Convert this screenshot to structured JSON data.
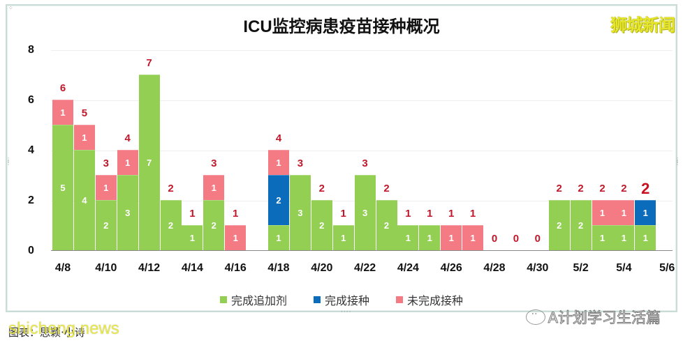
{
  "header": {
    "title": "ICU监控病患疫苗接种概况",
    "brand": "狮城新闻"
  },
  "legend": [
    {
      "label": "完成追加剂",
      "color": "#92cf52"
    },
    {
      "label": "完成接种",
      "color": "#0b6cbc"
    },
    {
      "label": "未完成接种",
      "color": "#f47a84"
    }
  ],
  "footer": {
    "source": "图表：思颖·小诗",
    "watermark": "shicheng.news",
    "wechat": "A计划学习生活篇"
  },
  "colors": {
    "booster": "#92cf52",
    "fully_vaccinated": "#0b6cbc",
    "unvaccinated": "#f47a84",
    "total_label": "#c0182a"
  },
  "chart_data": {
    "type": "bar",
    "stacked": true,
    "title": "ICU监控病患疫苗接种概况",
    "xlabel": "",
    "ylabel": "",
    "ylim": [
      0,
      8
    ],
    "yticks": [
      0,
      2,
      4,
      6,
      8
    ],
    "grid": true,
    "legend_position": "bottom",
    "xtick_labels": [
      "4/8",
      "4/10",
      "4/12",
      "4/14",
      "4/16",
      "4/18",
      "4/20",
      "4/22",
      "4/24",
      "4/26",
      "4/28",
      "4/30",
      "5/2",
      "5/4",
      "5/6"
    ],
    "categories": [
      "4/8",
      "4/9",
      "4/10",
      "4/11",
      "4/12",
      "4/13",
      "4/14",
      "4/15",
      "4/16",
      "4/17",
      "4/18",
      "4/19",
      "4/20",
      "4/21",
      "4/22",
      "4/23",
      "4/24",
      "4/25",
      "4/26",
      "4/27",
      "4/28",
      "4/29",
      "4/30",
      "5/1",
      "5/2",
      "5/3",
      "5/4",
      "5/5"
    ],
    "series": [
      {
        "name": "完成追加剂",
        "color": "#92cf52",
        "values": [
          5,
          4,
          2,
          3,
          7,
          2,
          1,
          2,
          0,
          null,
          1,
          3,
          2,
          1,
          3,
          2,
          1,
          1,
          0,
          0,
          0,
          0,
          0,
          2,
          2,
          1,
          1,
          1
        ]
      },
      {
        "name": "完成接种",
        "color": "#0b6cbc",
        "values": [
          0,
          0,
          0,
          0,
          0,
          0,
          0,
          0,
          0,
          null,
          2,
          0,
          0,
          0,
          0,
          0,
          0,
          0,
          0,
          0,
          0,
          0,
          0,
          0,
          0,
          0,
          0,
          1
        ]
      },
      {
        "name": "未完成接种",
        "color": "#f47a84",
        "values": [
          1,
          1,
          1,
          1,
          0,
          0,
          0,
          1,
          1,
          null,
          1,
          0,
          0,
          0,
          0,
          0,
          0,
          0,
          1,
          1,
          0,
          0,
          0,
          0,
          0,
          1,
          1,
          0
        ]
      }
    ],
    "totals": [
      6,
      5,
      3,
      4,
      7,
      2,
      1,
      3,
      1,
      null,
      4,
      3,
      2,
      1,
      3,
      2,
      1,
      1,
      1,
      1,
      0,
      0,
      0,
      2,
      2,
      2,
      2,
      2
    ],
    "annotations": [
      "Last total (5/5) label emphasized in larger bold red"
    ]
  }
}
